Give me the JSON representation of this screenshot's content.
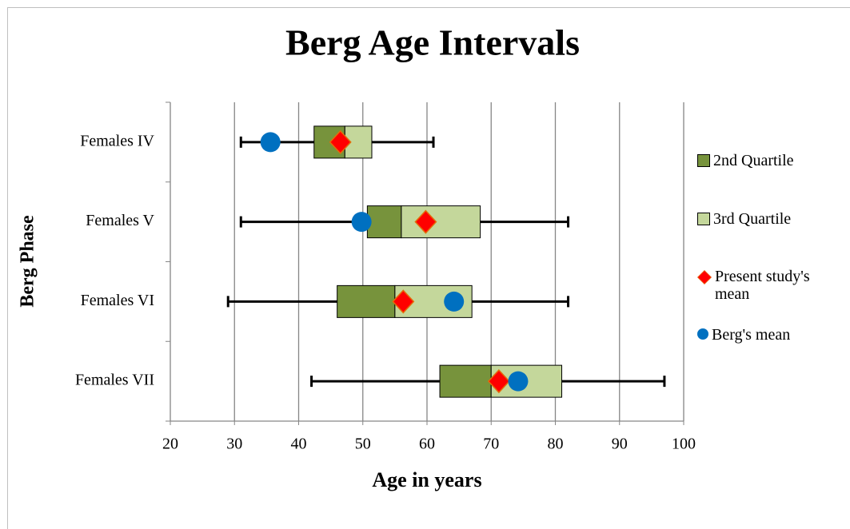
{
  "chart_data": {
    "type": "box",
    "title": "Berg Age Intervals",
    "x_label": "Age in years",
    "y_label": "Berg Phase",
    "categories": [
      "Females IV",
      "Females V",
      "Females VI",
      "Females VII"
    ],
    "whisker_low": [
      31,
      31,
      29,
      42
    ],
    "q1": [
      42.4,
      50.7,
      46,
      62
    ],
    "median": [
      47.2,
      56,
      55,
      70
    ],
    "q3": [
      51.4,
      68.3,
      67,
      81
    ],
    "whisker_high": [
      61,
      82,
      82,
      97
    ],
    "series": [
      {
        "name": "2nd Quartile",
        "color": "#77933c",
        "marker": "box"
      },
      {
        "name": "3rd Quartile",
        "color": "#c4d79b",
        "marker": "box"
      },
      {
        "name": "Present study's mean",
        "color": "#ff0000",
        "marker": "diamond",
        "values": [
          46.5,
          59.8,
          56.3,
          71.2
        ]
      },
      {
        "name": "Berg's mean",
        "color": "#0070c0",
        "marker": "circle",
        "values": [
          35.6,
          49.8,
          64.2,
          74.2
        ]
      }
    ],
    "xlim": [
      20,
      100
    ],
    "xticks": [
      20,
      30,
      40,
      50,
      60,
      70,
      80,
      90,
      100
    ],
    "grid": true,
    "legend": "right"
  }
}
